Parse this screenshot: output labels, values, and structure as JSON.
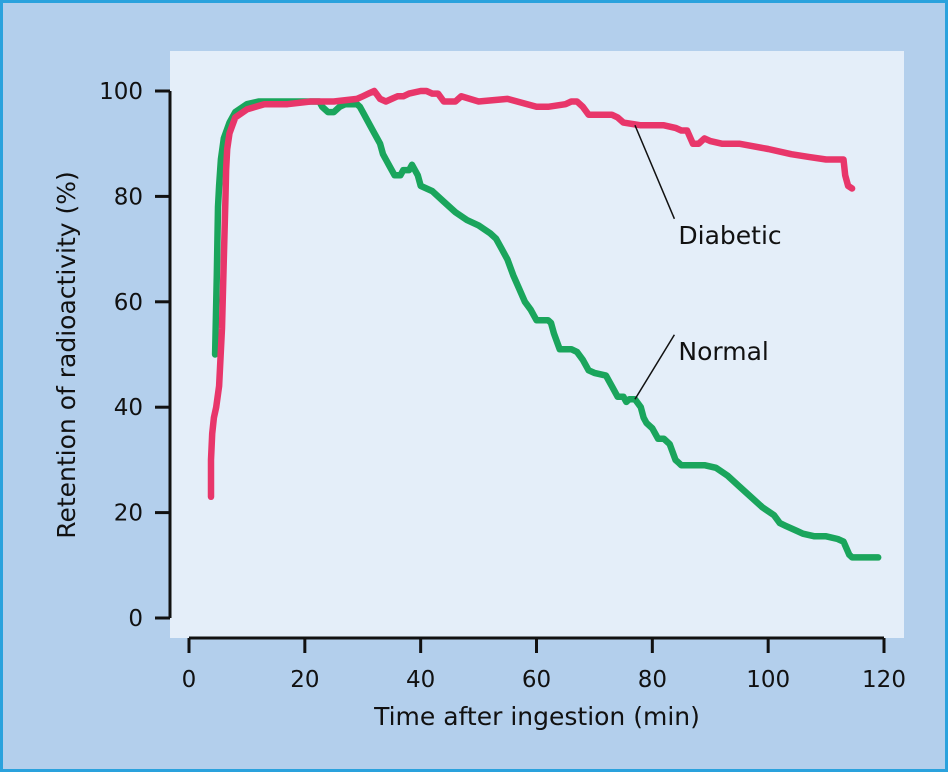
{
  "chart_data": {
    "type": "line",
    "title": "",
    "xlabel": "Time after ingestion (min)",
    "ylabel": "Retention of radioactivity (%)",
    "xlim": [
      0,
      120
    ],
    "ylim": [
      0,
      100
    ],
    "xticks": [
      0,
      20,
      40,
      60,
      80,
      100,
      120
    ],
    "yticks": [
      0,
      20,
      40,
      60,
      80,
      100
    ],
    "grid": false,
    "legend": "none (series labelled directly by annotations)",
    "colors": {
      "Normal": "#1aa55c",
      "Diabetic": "#e8366a",
      "plot_background": "#e4eef9",
      "frame_background": "#b3cfec",
      "frame_border": "#2aa2dd"
    },
    "series": [
      {
        "name": "Normal",
        "x": [
          4.5,
          4.8,
          5.0,
          5.2,
          5.5,
          6,
          7,
          8,
          10,
          12,
          16,
          20,
          22.5,
          23,
          24,
          25,
          26,
          27,
          29,
          29.5,
          30,
          31,
          32,
          33,
          33.5,
          34,
          34.5,
          35,
          35.5,
          36.5,
          37,
          38,
          38.5,
          39,
          39.5,
          40,
          41,
          42,
          44,
          46,
          48,
          50,
          52,
          53,
          54,
          55,
          56,
          57,
          58,
          59,
          59.5,
          60,
          61,
          62,
          62.5,
          63,
          64,
          66,
          67,
          68,
          69,
          70,
          72,
          73,
          74,
          75,
          75.5,
          76,
          77,
          78,
          78.5,
          79,
          80,
          80.5,
          81,
          82,
          83,
          84,
          84.5,
          85,
          86,
          87,
          89,
          91,
          93,
          95,
          97,
          99,
          101,
          102,
          103,
          105,
          106,
          108,
          110,
          112,
          113,
          114,
          114.5,
          115,
          117,
          119
        ],
        "values": [
          50,
          65,
          78,
          82,
          87,
          91,
          94,
          96,
          97.5,
          98,
          98,
          98,
          98,
          97,
          96,
          96,
          97,
          97.5,
          97.5,
          97,
          96,
          94,
          92,
          90,
          88,
          87,
          86,
          85,
          84,
          84,
          85,
          85,
          86,
          85,
          84,
          82,
          81.5,
          81,
          79,
          77,
          75.5,
          74.5,
          73,
          72,
          70,
          68,
          65,
          62.5,
          60,
          58.5,
          57.5,
          56.5,
          56.5,
          56.5,
          56,
          54,
          51,
          51,
          50.5,
          49,
          47,
          46.5,
          46,
          44,
          42,
          42,
          41,
          41.5,
          41.5,
          40,
          38,
          37,
          36,
          35,
          34,
          34,
          33,
          30,
          29.5,
          29,
          29,
          29,
          29,
          28.5,
          27,
          25,
          23,
          21,
          19.5,
          18,
          17.5,
          16.5,
          16,
          15.5,
          15.5,
          15,
          14.5,
          12,
          11.5,
          11.5,
          11.5,
          11.5
        ]
      },
      {
        "name": "Diabetic",
        "x": [
          3.8,
          3.8,
          4.0,
          4.3,
          4.7,
          5.2,
          5.7,
          6.0,
          6.3,
          6.4,
          6.6,
          7.0,
          8,
          10,
          13,
          17,
          21,
          25,
          29,
          30,
          31,
          32,
          33,
          34,
          35,
          36,
          37,
          38,
          40,
          41,
          42,
          43,
          44,
          45,
          46,
          47,
          50,
          55,
          60,
          62,
          65,
          66,
          67,
          68,
          69,
          71,
          73,
          74,
          75,
          78,
          81,
          82,
          84,
          85,
          86,
          87,
          88,
          89,
          90,
          92,
          95,
          100,
          104,
          107,
          110,
          112,
          113,
          113.3,
          113.8,
          114.5
        ],
        "values": [
          23,
          30,
          35,
          38,
          40,
          44,
          55,
          68,
          80,
          85,
          89,
          92,
          95,
          96.5,
          97.5,
          97.5,
          98,
          98,
          98.5,
          99,
          99.5,
          100,
          98.5,
          98,
          98.5,
          99,
          99,
          99.5,
          100,
          100,
          99.5,
          99.5,
          98,
          98,
          98,
          99,
          98,
          98.5,
          97,
          97,
          97.5,
          98,
          98,
          97,
          95.5,
          95.5,
          95.5,
          95,
          94,
          93.5,
          93.5,
          93.5,
          93,
          92.5,
          92.5,
          90,
          90,
          91,
          90.5,
          90,
          90,
          89,
          88,
          87.5,
          87,
          87,
          87,
          84,
          82,
          81.5
        ]
      }
    ],
    "annotations": [
      {
        "text": "Diabetic",
        "series": "Diabetic",
        "label_at": [
          84.5,
          71
        ],
        "points_to": [
          77,
          93.5
        ]
      },
      {
        "text": "Normal",
        "series": "Normal",
        "label_at": [
          84.5,
          49
        ],
        "points_to": [
          77,
          41.5
        ]
      }
    ]
  }
}
